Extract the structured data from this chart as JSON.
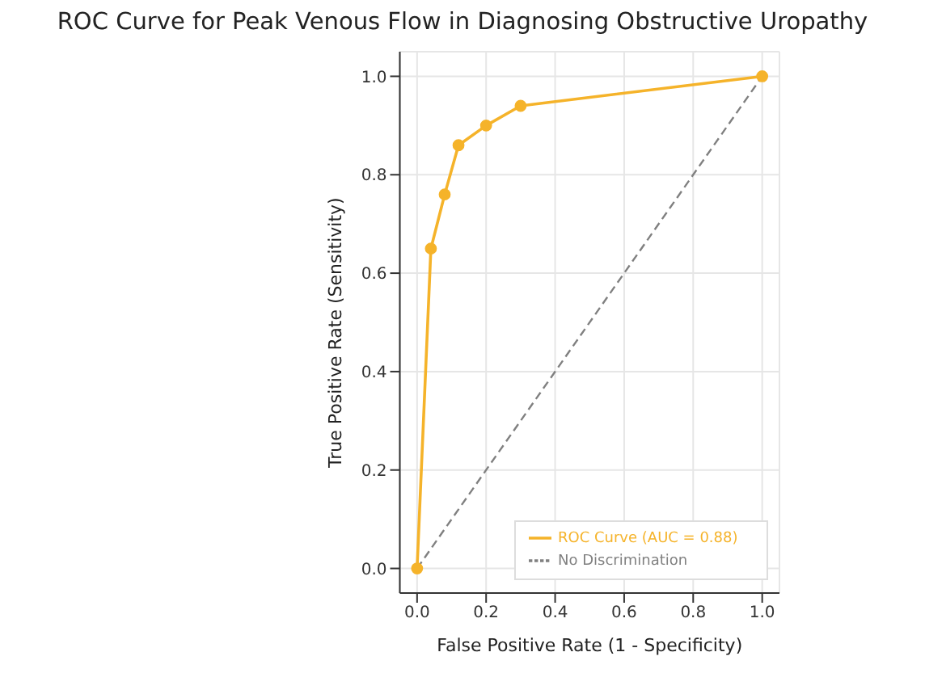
{
  "chart_data": {
    "type": "line",
    "title": "ROC Curve for Peak Venous Flow in Diagnosing Obstructive Uropathy",
    "xlabel": "False Positive Rate (1 - Specificity)",
    "ylabel": "True Positive Rate (Sensitivity)",
    "x": [
      0,
      0.04,
      0.08,
      0.12,
      0.2,
      0.3,
      1
    ],
    "series": [
      {
        "name": "ROC Curve (AUC = 0.88)",
        "color": "#f5b32a",
        "values": [
          0,
          0.65,
          0.76,
          0.86,
          0.9,
          0.94,
          1
        ],
        "marker": "circle",
        "line_style": "solid"
      },
      {
        "name": "No Discrimination",
        "color": "#808080",
        "x": [
          0,
          1
        ],
        "values": [
          0,
          1
        ],
        "marker": "none",
        "line_style": "dashed"
      }
    ],
    "xlim": [
      -0.05,
      1.05
    ],
    "ylim": [
      -0.05,
      1.05
    ],
    "xticks": [
      {
        "value": 0,
        "label": "0.0"
      },
      0.2,
      0.4,
      0.6,
      0.8,
      {
        "value": 1,
        "label": "1.0"
      }
    ],
    "yticks": [
      {
        "value": 0,
        "label": "0.0"
      },
      0.2,
      0.4,
      0.6,
      0.8,
      {
        "value": 1,
        "label": "1.0"
      }
    ],
    "grid": true,
    "legend": "bottom right"
  }
}
